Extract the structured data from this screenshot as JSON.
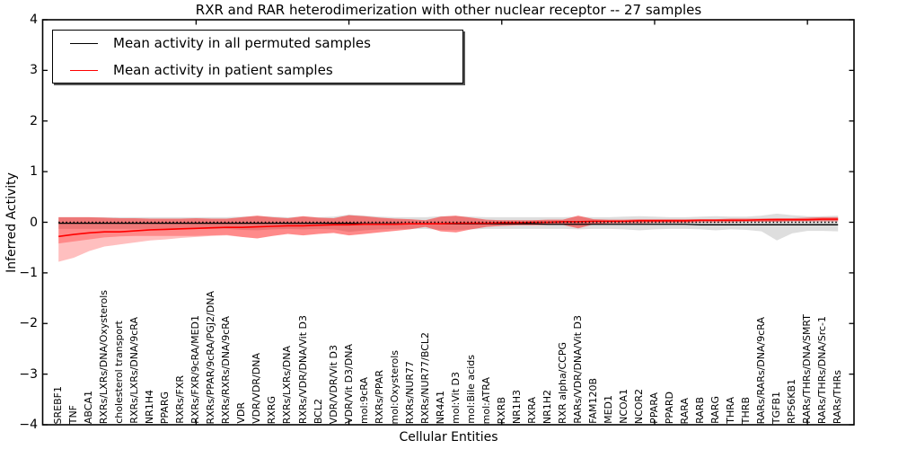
{
  "figure": {
    "title": "RXR and RAR heterodimerization with other nuclear receptor -- 27 samples",
    "xlabel": "Cellular Entities",
    "ylabel": "Inferred Activity"
  },
  "legend": {
    "items": [
      {
        "label": "Mean activity in all permuted samples",
        "color": "#000000"
      },
      {
        "label": "Mean activity in patient samples",
        "color": "#ff0000"
      }
    ]
  },
  "colors": {
    "background": "#ffffff",
    "axis": "#000000",
    "permuted_line": "#000000",
    "patient_line": "#ff0000",
    "permuted_band": "#000000",
    "patient_band": "#ff0000"
  },
  "chart_data": {
    "type": "line",
    "title": "RXR and RAR heterodimerization with other nuclear receptor -- 27 samples",
    "xlabel": "Cellular Entities",
    "ylabel": "Inferred Activity",
    "ylim": [
      -4,
      4
    ],
    "ytick_values": [
      4,
      3,
      2,
      1,
      0,
      -1,
      -2,
      -3,
      -4
    ],
    "ytick_labels": [
      "4",
      "3",
      "2",
      "1",
      "0",
      "−1",
      "−2",
      "−3",
      "−4"
    ],
    "grid": false,
    "legend_position": "upper left",
    "sample_count": 27,
    "major_tick_indices": [
      9,
      19,
      29,
      39,
      49
    ],
    "categories": [
      "SREBF1",
      "TNF",
      "ABCA1",
      "RXRs/LXRs/DNA/Oxysterols",
      "cholesterol transport",
      "RXRs/LXRs/DNA/9cRA",
      "NR1H4",
      "PPARG",
      "RXRs/FXR",
      "RXRs/FXR/9cRA/MED1",
      "RXRs/PPAR/9cRA/PGJ2/DNA",
      "RXRs/RXRs/DNA/9cRA",
      "VDR",
      "VDR/VDR/DNA",
      "RXRG",
      "RXRs/LXRs/DNA",
      "RXRs/VDR/DNA/Vit D3",
      "BCL2",
      "VDR/VDR/Vit D3",
      "VDR/Vit D3/DNA",
      "mol:9cRA",
      "RXRs/PPAR",
      "mol:Oxysterols",
      "RXRs/NUR77",
      "RXRs/NUR77/BCL2",
      "NR4A1",
      "mol:Vit D3",
      "mol:Bile acids",
      "mol:ATRA",
      "RXRB",
      "NR1H3",
      "RXRA",
      "NR1H2",
      "RXR alpha/CCPG",
      "RARs/VDR/DNA/Vit D3",
      "FAM120B",
      "MED1",
      "NCOA1",
      "NCOR2",
      "PPARA",
      "PPARD",
      "RARA",
      "RARB",
      "RARG",
      "THRA",
      "THRB",
      "RARs/RARs/DNA/9cRA",
      "TGFB1",
      "RPS6KB1",
      "RARs/THRs/DNA/SMRT",
      "RARs/THRs/DNA/Src-1",
      "RARs/THRs"
    ],
    "series": [
      {
        "name": "Mean activity in all permuted samples",
        "color": "#000000",
        "width": 1.3,
        "values": [
          -0.02,
          -0.02,
          -0.02,
          -0.02,
          -0.02,
          -0.02,
          -0.02,
          -0.02,
          -0.02,
          -0.02,
          -0.02,
          -0.02,
          -0.02,
          -0.02,
          -0.02,
          -0.02,
          -0.02,
          -0.02,
          -0.02,
          -0.02,
          -0.03,
          -0.03,
          -0.03,
          -0.03,
          -0.03,
          -0.03,
          -0.03,
          -0.03,
          -0.03,
          -0.03,
          -0.03,
          -0.03,
          -0.04,
          -0.04,
          -0.04,
          -0.04,
          -0.04,
          -0.04,
          -0.04,
          -0.04,
          -0.04,
          -0.04,
          -0.05,
          -0.05,
          -0.05,
          -0.05,
          -0.05,
          -0.05,
          -0.05,
          -0.05,
          -0.05,
          -0.05
        ]
      },
      {
        "name": "Mean activity in patient samples",
        "color": "#ff0000",
        "width": 1.6,
        "values": [
          -0.28,
          -0.24,
          -0.21,
          -0.19,
          -0.19,
          -0.17,
          -0.15,
          -0.14,
          -0.13,
          -0.12,
          -0.11,
          -0.1,
          -0.1,
          -0.09,
          -0.08,
          -0.07,
          -0.07,
          -0.06,
          -0.05,
          -0.05,
          -0.04,
          -0.04,
          -0.04,
          -0.03,
          -0.03,
          -0.03,
          -0.02,
          -0.02,
          -0.02,
          -0.01,
          -0.01,
          0.0,
          0.0,
          0.01,
          0.01,
          0.02,
          0.02,
          0.02,
          0.03,
          0.03,
          0.03,
          0.03,
          0.04,
          0.04,
          0.04,
          0.04,
          0.05,
          0.05,
          0.05,
          0.05,
          0.06,
          0.06
        ]
      }
    ],
    "bands": [
      {
        "name": "permuted-samples-range",
        "color": "#000000",
        "opacity": 0.13,
        "hi": [
          0.1,
          0.1,
          0.1,
          0.1,
          0.1,
          0.1,
          0.1,
          0.1,
          0.1,
          0.1,
          0.1,
          0.1,
          0.11,
          0.12,
          0.11,
          0.1,
          0.11,
          0.1,
          0.11,
          0.15,
          0.13,
          0.11,
          0.1,
          0.1,
          0.1,
          0.12,
          0.12,
          0.11,
          0.1,
          0.1,
          0.1,
          0.1,
          0.1,
          0.1,
          0.11,
          0.1,
          0.1,
          0.11,
          0.12,
          0.11,
          0.1,
          0.1,
          0.11,
          0.12,
          0.11,
          0.11,
          0.13,
          0.17,
          0.14,
          0.12,
          0.12,
          0.13
        ],
        "lo": [
          -0.13,
          -0.13,
          -0.13,
          -0.13,
          -0.13,
          -0.13,
          -0.13,
          -0.13,
          -0.13,
          -0.13,
          -0.13,
          -0.13,
          -0.15,
          -0.16,
          -0.14,
          -0.13,
          -0.14,
          -0.13,
          -0.14,
          -0.19,
          -0.16,
          -0.14,
          -0.13,
          -0.13,
          -0.13,
          -0.15,
          -0.15,
          -0.14,
          -0.13,
          -0.13,
          -0.13,
          -0.13,
          -0.13,
          -0.13,
          -0.14,
          -0.13,
          -0.13,
          -0.14,
          -0.16,
          -0.14,
          -0.13,
          -0.13,
          -0.14,
          -0.16,
          -0.14,
          -0.15,
          -0.18,
          -0.36,
          -0.22,
          -0.17,
          -0.17,
          -0.18
        ]
      },
      {
        "name": "patient-samples-range-outer",
        "color": "#ff0000",
        "opacity": 0.25,
        "hi": [
          0.1,
          0.1,
          0.1,
          0.09,
          0.08,
          0.08,
          0.07,
          0.07,
          0.07,
          0.08,
          0.07,
          0.07,
          0.1,
          0.13,
          0.1,
          0.08,
          0.12,
          0.09,
          0.08,
          0.14,
          0.12,
          0.09,
          0.07,
          0.06,
          0.04,
          0.11,
          0.13,
          0.09,
          0.05,
          0.04,
          0.04,
          0.04,
          0.05,
          0.05,
          0.13,
          0.06,
          0.05,
          0.05,
          0.06,
          0.06,
          0.06,
          0.06,
          0.06,
          0.06,
          0.07,
          0.07,
          0.07,
          0.08,
          0.08,
          0.09,
          0.1,
          0.1
        ],
        "lo": [
          -0.78,
          -0.7,
          -0.57,
          -0.48,
          -0.44,
          -0.4,
          -0.36,
          -0.34,
          -0.31,
          -0.29,
          -0.27,
          -0.26,
          -0.29,
          -0.32,
          -0.27,
          -0.23,
          -0.26,
          -0.23,
          -0.21,
          -0.26,
          -0.23,
          -0.2,
          -0.17,
          -0.14,
          -0.09,
          -0.18,
          -0.2,
          -0.14,
          -0.09,
          -0.07,
          -0.06,
          -0.06,
          -0.05,
          -0.05,
          -0.12,
          -0.04,
          -0.02,
          -0.02,
          -0.02,
          -0.01,
          -0.01,
          -0.01,
          0.0,
          0.0,
          0.0,
          0.01,
          0.01,
          0.01,
          0.02,
          0.02,
          0.02,
          0.02
        ]
      },
      {
        "name": "patient-samples-range-inner",
        "color": "#ff0000",
        "opacity": 0.28,
        "hi": [
          0.1,
          0.1,
          0.1,
          0.09,
          0.08,
          0.08,
          0.07,
          0.07,
          0.07,
          0.08,
          0.07,
          0.07,
          0.1,
          0.13,
          0.1,
          0.08,
          0.12,
          0.09,
          0.08,
          0.14,
          0.12,
          0.09,
          0.07,
          0.06,
          0.04,
          0.11,
          0.13,
          0.09,
          0.05,
          0.04,
          0.04,
          0.04,
          0.05,
          0.05,
          0.13,
          0.06,
          0.05,
          0.05,
          0.06,
          0.06,
          0.06,
          0.06,
          0.06,
          0.06,
          0.07,
          0.07,
          0.07,
          0.08,
          0.08,
          0.09,
          0.1,
          0.1
        ],
        "lo": [
          -0.42,
          -0.38,
          -0.34,
          -0.3,
          -0.28,
          -0.27,
          -0.27,
          -0.27,
          -0.27,
          -0.27,
          -0.26,
          -0.25,
          -0.29,
          -0.32,
          -0.27,
          -0.23,
          -0.26,
          -0.23,
          -0.21,
          -0.26,
          -0.23,
          -0.2,
          -0.17,
          -0.14,
          -0.09,
          -0.18,
          -0.2,
          -0.14,
          -0.09,
          -0.07,
          -0.06,
          -0.06,
          -0.05,
          -0.05,
          -0.12,
          -0.04,
          -0.02,
          -0.02,
          -0.02,
          -0.01,
          -0.01,
          -0.01,
          0.0,
          0.0,
          0.0,
          0.01,
          0.01,
          0.01,
          0.02,
          0.02,
          0.02,
          0.02
        ]
      }
    ],
    "zero_line": {
      "value": 0,
      "style": "dotted",
      "color": "#000000"
    }
  }
}
